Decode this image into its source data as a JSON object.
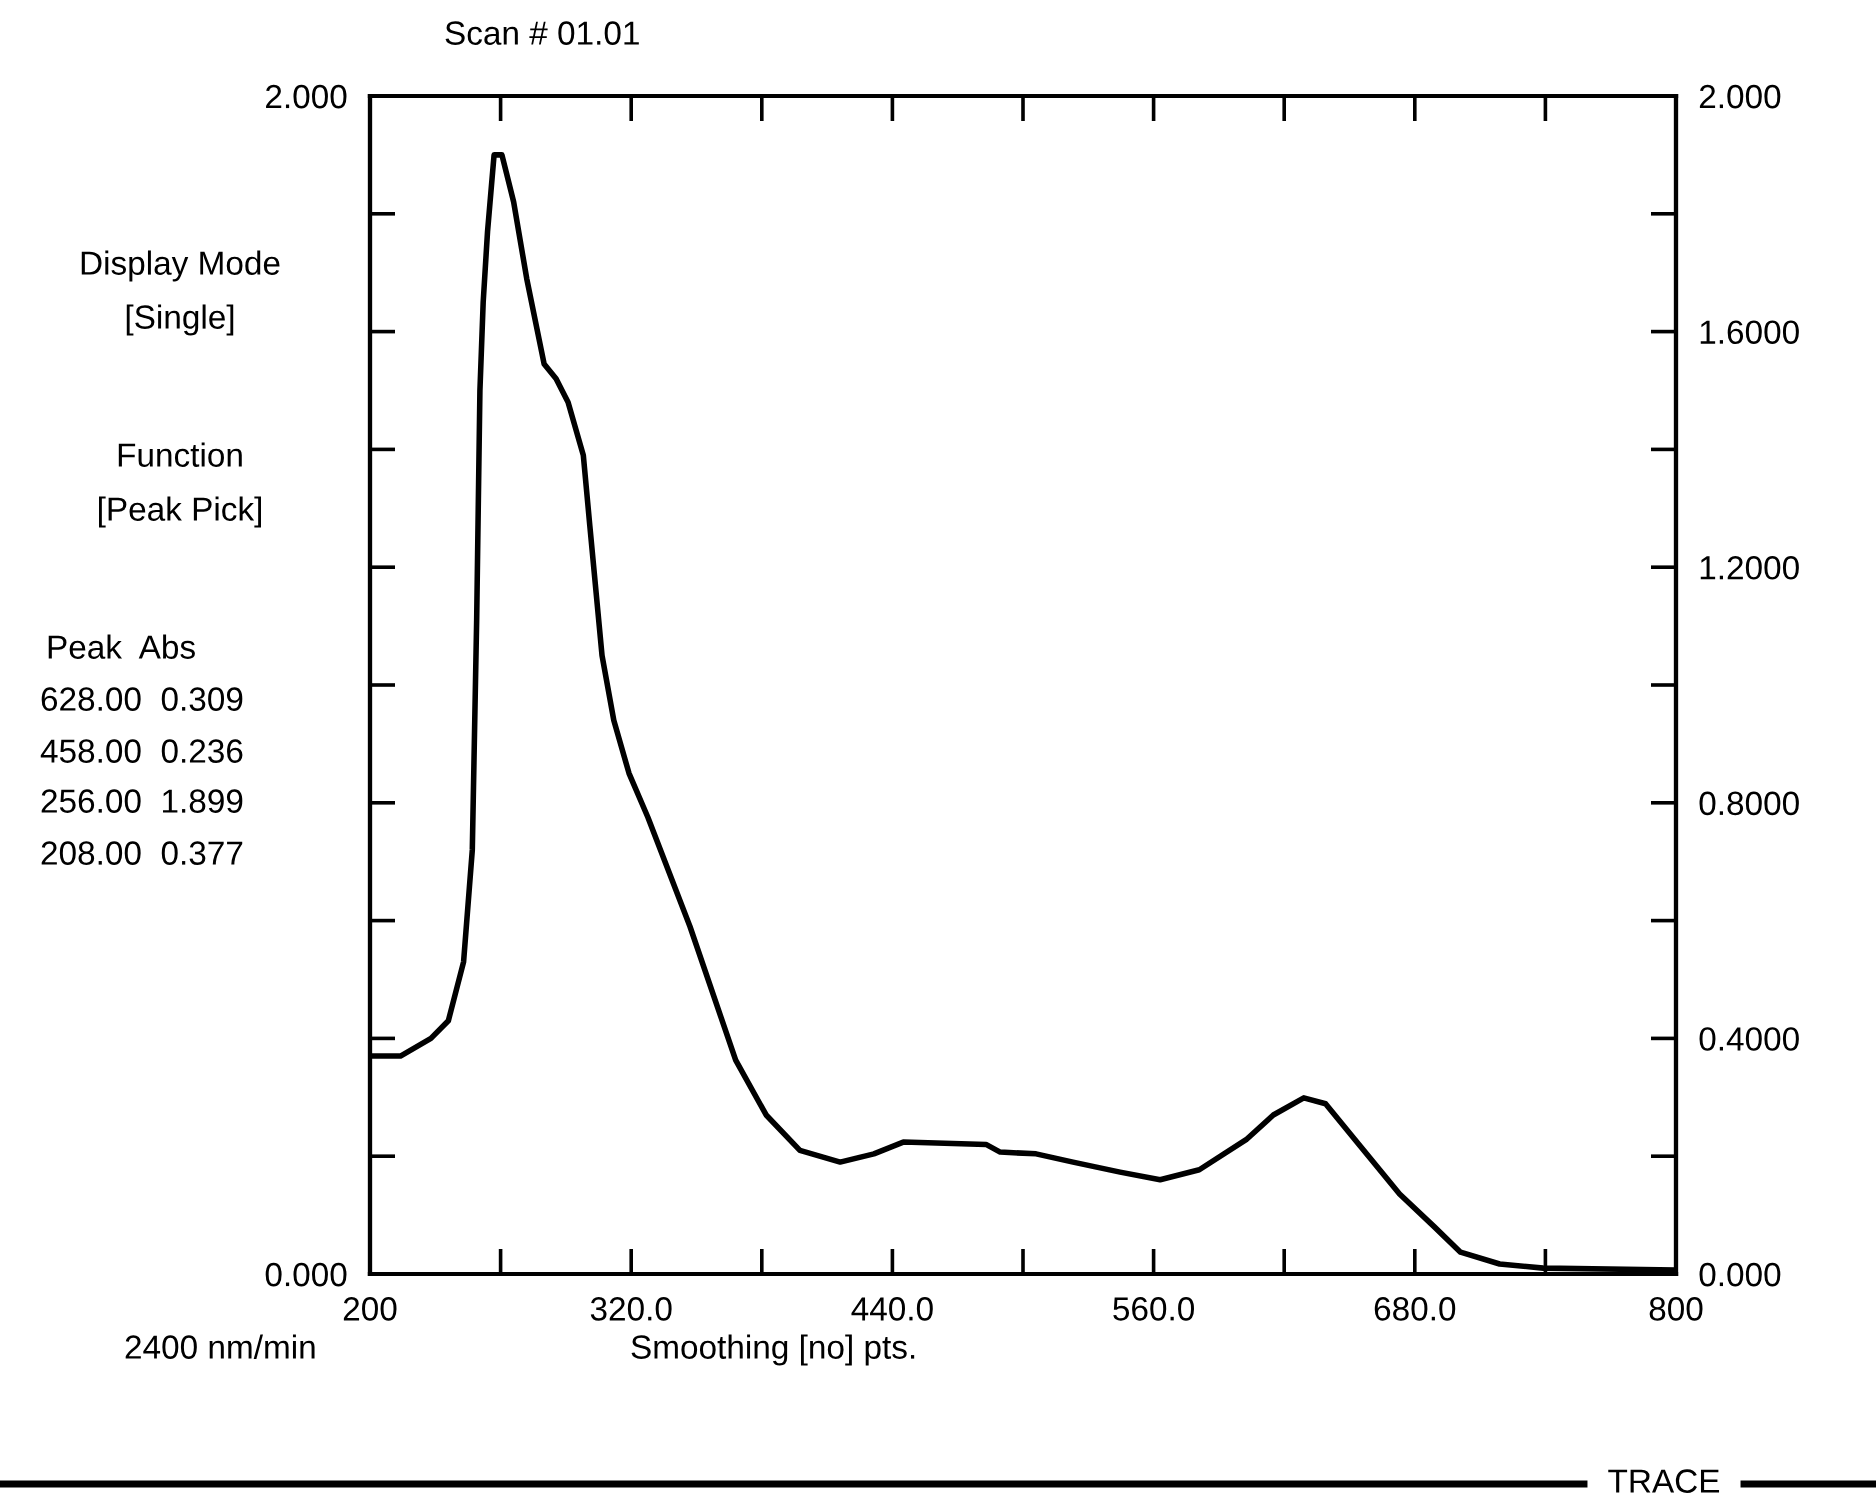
{
  "chart_data": {
    "type": "line",
    "title": "Scan # 01.01",
    "annotations": [
      "Display Mode",
      "[Single]",
      "Function",
      "[Peak Pick]",
      "Peak  Abs",
      "628.00  0.309",
      "458.00  0.236",
      "256.00  1.899",
      "208.00  0.377",
      "2400 nm/min",
      "Smoothing [no] pts.",
      "TRACE"
    ],
    "x": [
      200,
      214,
      228,
      236,
      243,
      247,
      249,
      250.5,
      252,
      254,
      257,
      260.6,
      266,
      272,
      280,
      285.5,
      291,
      298,
      301,
      306.6,
      312,
      319,
      327.7,
      347,
      368,
      382,
      397.5,
      416,
      431.5,
      445,
      483,
      489.5,
      506,
      523,
      544.6,
      563,
      581,
      602.5,
      615,
      629,
      639,
      655,
      673,
      689,
      701,
      719,
      739,
      799
    ],
    "series": [
      {
        "color": "#000000",
        "values": [
          0.37,
          0.37,
          0.4,
          0.43,
          0.53,
          0.72,
          1.11,
          1.5,
          1.65,
          1.77,
          1.9,
          1.9,
          1.82,
          1.69,
          1.545,
          1.52,
          1.48,
          1.39,
          1.27,
          1.05,
          0.94,
          0.85,
          0.775,
          0.59,
          0.363,
          0.27,
          0.21,
          0.19,
          0.204,
          0.224,
          0.22,
          0.207,
          0.204,
          0.19,
          0.173,
          0.16,
          0.177,
          0.228,
          0.27,
          0.299,
          0.289,
          0.217,
          0.136,
          0.08,
          0.037,
          0.017,
          0.01,
          0.007
        ]
      }
    ],
    "xlim": [
      200,
      800
    ],
    "xticks": [
      200,
      {
        "value": 260,
        "label": null
      },
      {
        "value": 320,
        "label": "320.0"
      },
      {
        "value": 380,
        "label": null
      },
      {
        "value": 440,
        "label": "440.0"
      },
      {
        "value": 500,
        "label": null
      },
      {
        "value": 560,
        "label": "560.0"
      },
      {
        "value": 620,
        "label": null
      },
      {
        "value": 680,
        "label": "680.0"
      },
      {
        "value": 740,
        "label": null
      },
      800
    ],
    "ylim": [
      0,
      2
    ],
    "yticks": [
      {
        "value": 0,
        "label": "0.000"
      },
      {
        "value": 0.2,
        "label": null
      },
      {
        "value": 0.4,
        "label": null
      },
      {
        "value": 0.6,
        "label": null
      },
      {
        "value": 0.8,
        "label": null
      },
      {
        "value": 1.0,
        "label": null
      },
      {
        "value": 1.2,
        "label": null
      },
      {
        "value": 1.4,
        "label": null
      },
      {
        "value": 1.6,
        "label": null
      },
      {
        "value": 1.8,
        "label": null
      },
      {
        "value": 2,
        "label": "2.000"
      }
    ],
    "y2lim": [
      0,
      2
    ],
    "y2ticks": [
      {
        "value": 0,
        "label": "0.000"
      },
      {
        "value": 0.2,
        "label": null
      },
      {
        "value": 0.4,
        "label": "0.4000"
      },
      {
        "value": 0.6,
        "label": null
      },
      {
        "value": 0.8,
        "label": "0.8000"
      },
      {
        "value": 1.0,
        "label": null
      },
      {
        "value": 1.2,
        "label": "1.2000"
      },
      {
        "value": 1.4,
        "label": null
      },
      {
        "value": 1.6,
        "label": "1.6000"
      },
      {
        "value": 1.8,
        "label": null
      },
      {
        "value": 2,
        "label": "2.000"
      }
    ],
    "grid": false,
    "legend": false,
    "marker": "none",
    "line_style": "solid"
  }
}
